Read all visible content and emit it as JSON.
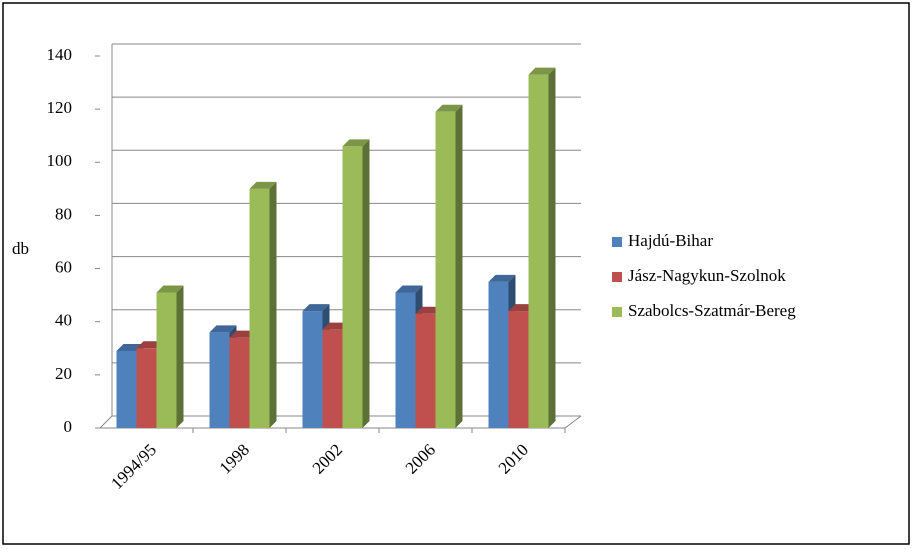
{
  "chart_data": {
    "type": "bar3d",
    "y_label": "db",
    "categories": [
      "1994/95",
      "1998",
      "2002",
      "2006",
      "2010"
    ],
    "series": [
      {
        "name": "Hajdú-Bihar",
        "color": "#4f81bd",
        "values": [
          29,
          36,
          44,
          51,
          55
        ]
      },
      {
        "name": "Jász-Nagykun-Szolnok",
        "color": "#c0504d",
        "values": [
          30,
          34,
          37,
          43,
          44
        ]
      },
      {
        "name": "Szabolcs-Szatmár-Bereg",
        "color": "#9bbb59",
        "values": [
          51,
          90,
          106,
          119,
          133
        ]
      }
    ],
    "ylim": [
      0,
      140
    ],
    "yticks": [
      0,
      20,
      40,
      60,
      80,
      100,
      120,
      140
    ],
    "grid": true,
    "legend": "right"
  }
}
